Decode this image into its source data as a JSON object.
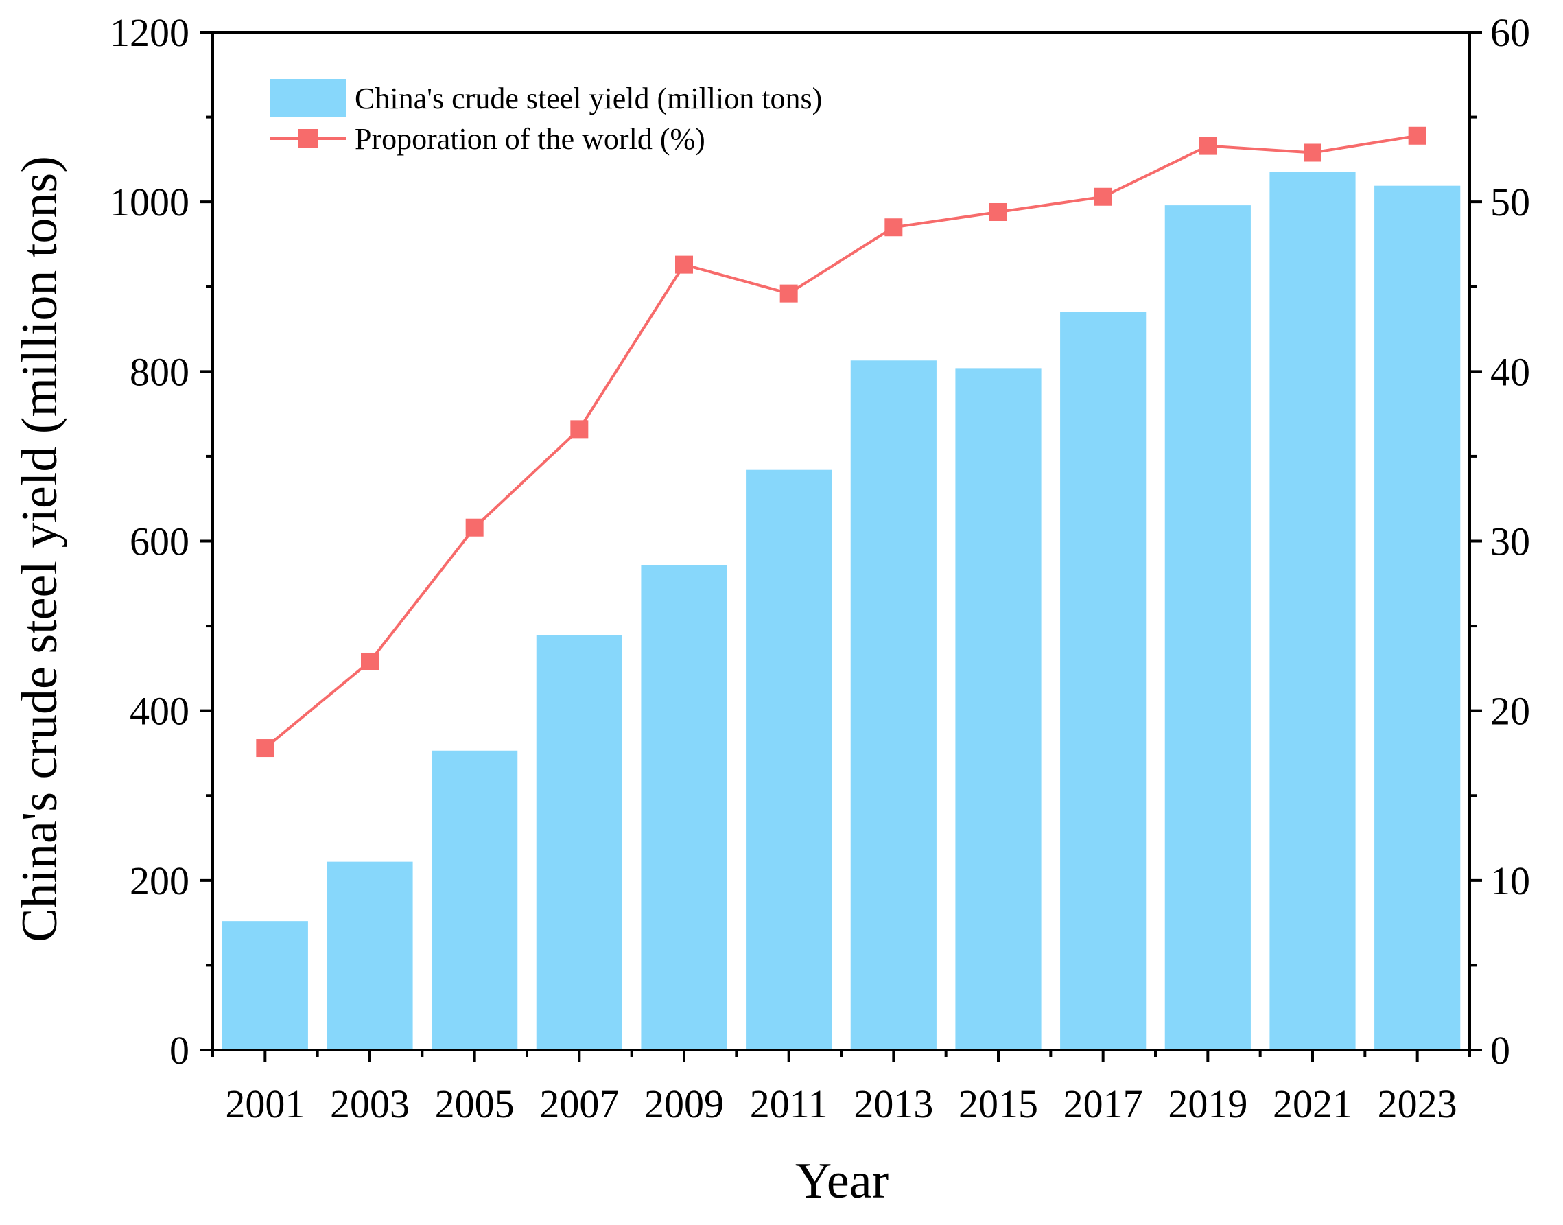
{
  "chart_data": {
    "type": "bar",
    "title": "",
    "xlabel": "Year",
    "ylabel": "China's crude steel yield (million tons)",
    "y2label": "",
    "categories": [
      "2001",
      "2003",
      "2005",
      "2007",
      "2009",
      "2011",
      "2013",
      "2015",
      "2017",
      "2019",
      "2021",
      "2023"
    ],
    "ylim": [
      0,
      1200
    ],
    "y2lim": [
      0,
      60
    ],
    "yticks": [
      0,
      200,
      400,
      600,
      800,
      1000,
      1200
    ],
    "y2ticks": [
      0,
      10,
      20,
      30,
      40,
      50,
      60
    ],
    "legend_position": "top-left",
    "grid": false,
    "series": [
      {
        "name": "China's crude steel yield (million tons)",
        "type": "bar",
        "axis": "left",
        "color": "#87d7fb",
        "values": [
          152,
          222,
          353,
          489,
          572,
          684,
          813,
          804,
          870,
          996,
          1035,
          1019
        ]
      },
      {
        "name": "Proporation of the world (%)",
        "type": "line",
        "marker": "square",
        "axis": "right",
        "color": "#f76b6b",
        "values": [
          17.8,
          22.9,
          30.8,
          36.6,
          46.3,
          44.6,
          48.5,
          49.4,
          50.3,
          53.3,
          52.9,
          53.9
        ]
      }
    ]
  }
}
